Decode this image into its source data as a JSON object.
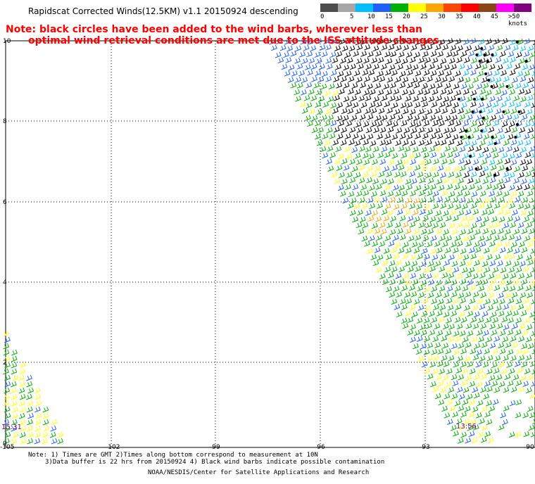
{
  "title": "Rapidscat Corrected Winds(12.5KM) v1.1 20150924 descending",
  "note": {
    "line1": "Note: black circles have been added to the wind barbs, wherever less than",
    "line2": "optimal wind retrieval conditions are met due to the ISS attitude changes."
  },
  "legend": {
    "colors": [
      "#4d4d4d",
      "#a6a6a6",
      "#00bfff",
      "#1f5fff",
      "#00b000",
      "#ffff00",
      "#ffa500",
      "#ff4500",
      "#ff0000",
      "#8b4513",
      "#ff00ff",
      "#800080"
    ],
    "labels": [
      "0",
      "5",
      "10",
      "15",
      "20",
      "25",
      "30",
      "35",
      "40",
      "45",
      ">50 knots"
    ]
  },
  "axes": {
    "lat_labels": [
      "10",
      "8",
      "6",
      "4",
      "2",
      "0"
    ],
    "lon_labels": [
      "-105",
      "-102",
      "-99",
      "-96",
      "-93",
      "-90"
    ]
  },
  "time_labels": {
    "left": "15:31",
    "right": "13:56"
  },
  "footer": {
    "note1": "Note: 1) Times are GMT 2)Times along bottom correspond to measurement at 10N",
    "note2": "3)Data buffer is 22 hrs from 20150924 4) Black wind barbs indicate possible contamination",
    "credit": "NOAA/NESDIS/Center for Satellite Applications and Research"
  }
}
